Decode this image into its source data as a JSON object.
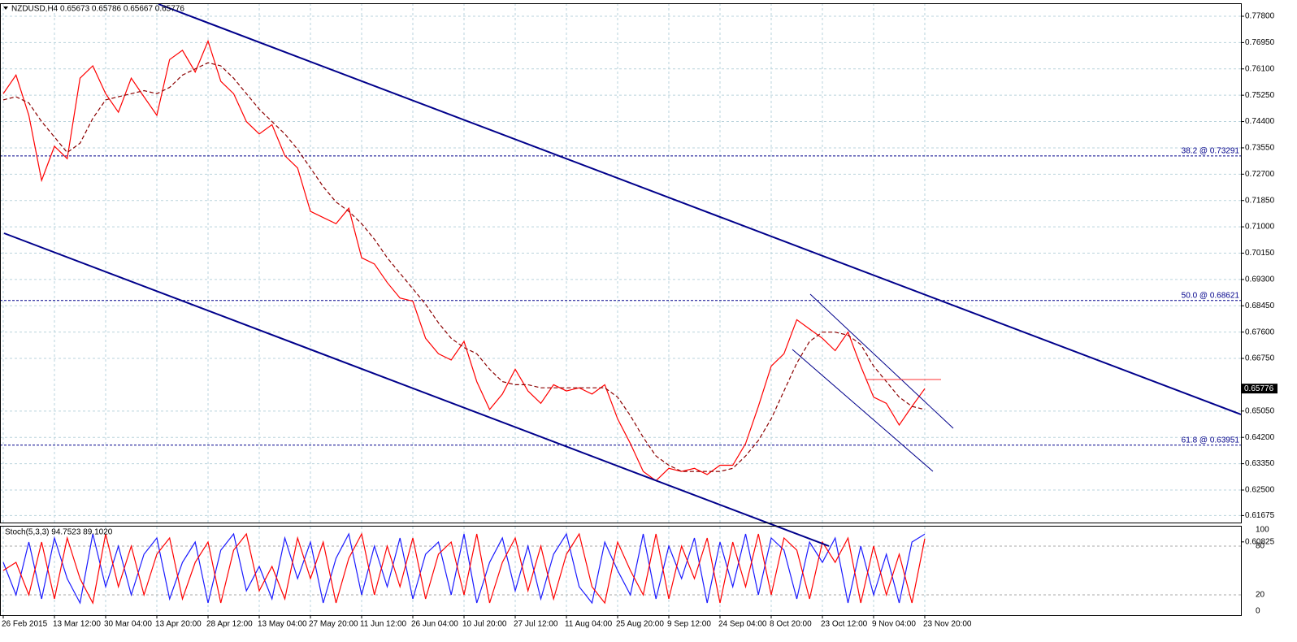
{
  "chart_data": {
    "type": "line",
    "title": "NZDUSD,H4 0.65673 0.65786 0.65667 0.65776",
    "subtitle": "Stoch(5,3,3) 94.7523 89.1020",
    "grid": true,
    "x": [
      0,
      1,
      2,
      3,
      4,
      5,
      6,
      7,
      8,
      9,
      10,
      11,
      12,
      13,
      14,
      15,
      16,
      17,
      18,
      19,
      20,
      21,
      22,
      23,
      24,
      25,
      26,
      27,
      28,
      29,
      30,
      31,
      32,
      33,
      34,
      35,
      36,
      37,
      38,
      39,
      40,
      41,
      42,
      43,
      44,
      45,
      46,
      47,
      48,
      49,
      50,
      51,
      52,
      53,
      54,
      55,
      56,
      57,
      58,
      59,
      60,
      61,
      62,
      63,
      64,
      65,
      66,
      67,
      68,
      69,
      70,
      71,
      72
    ],
    "xlim": [
      0,
      96.7
    ],
    "xticks": [
      {
        "value": 0,
        "label": "26 Feb 2015"
      },
      {
        "value": 4,
        "label": "13 Mar 12:00"
      },
      {
        "value": 8,
        "label": "30 Mar 04:00"
      },
      {
        "value": 12,
        "label": "13 Apr 20:00"
      },
      {
        "value": 16,
        "label": "28 Apr 12:00"
      },
      {
        "value": 20,
        "label": "13 May 04:00"
      },
      {
        "value": 24,
        "label": "27 May 20:00"
      },
      {
        "value": 28,
        "label": "11 Jun 12:00"
      },
      {
        "value": 32,
        "label": "26 Jun 04:00"
      },
      {
        "value": 36,
        "label": "10 Jul 20:00"
      },
      {
        "value": 40,
        "label": "27 Jul 12:00"
      },
      {
        "value": 44,
        "label": "11 Aug 04:00"
      },
      {
        "value": 48,
        "label": "25 Aug 20:00"
      },
      {
        "value": 52,
        "label": "9 Sep 12:00"
      },
      {
        "value": 56,
        "label": "24 Sep 04:00"
      },
      {
        "value": 60,
        "label": "8 Oct 20:00"
      },
      {
        "value": 64,
        "label": "23 Oct 12:00"
      },
      {
        "value": 68,
        "label": "9 Nov 04:00"
      },
      {
        "value": 72,
        "label": "23 Nov 20:00"
      }
    ],
    "ylim": [
      0.6145,
      0.7822
    ],
    "yticks": [
      {
        "value": 0.778,
        "label": "0.77800"
      },
      {
        "value": 0.7695,
        "label": "0.76950"
      },
      {
        "value": 0.761,
        "label": "0.76100"
      },
      {
        "value": 0.7525,
        "label": "0.75250"
      },
      {
        "value": 0.744,
        "label": "0.74400"
      },
      {
        "value": 0.7355,
        "label": "0.73550"
      },
      {
        "value": 0.727,
        "label": "0.72700"
      },
      {
        "value": 0.7185,
        "label": "0.71850"
      },
      {
        "value": 0.71,
        "label": "0.71000"
      },
      {
        "value": 0.7015,
        "label": "0.70150"
      },
      {
        "value": 0.693,
        "label": "0.69300"
      },
      {
        "value": 0.6845,
        "label": "0.68450"
      },
      {
        "value": 0.676,
        "label": "0.67600"
      },
      {
        "value": 0.6675,
        "label": "0.66750"
      },
      {
        "value": 0.6505,
        "label": "0.65050"
      },
      {
        "value": 0.642,
        "label": "0.64200"
      },
      {
        "value": 0.6335,
        "label": "0.63350"
      },
      {
        "value": 0.625,
        "label": "0.62500"
      },
      {
        "value": 0.61675,
        "label": "0.61675"
      },
      {
        "value": 0.60825,
        "label": "0.60825"
      }
    ],
    "y2lim": [
      0,
      100
    ],
    "y2ticks": [
      0,
      20,
      80,
      100
    ],
    "last_price": {
      "value": 0.65776,
      "label": "0.65776"
    },
    "levels": [
      {
        "value": 0.73291,
        "label": "38.2 @ 0.73291"
      },
      {
        "value": 0.68621,
        "label": "50.0 @ 0.68621"
      },
      {
        "value": 0.63951,
        "label": "61.8 @ 0.63951"
      }
    ],
    "series": [
      {
        "name": "NZDUSD",
        "color": "#ff0000",
        "values": [
          0.753,
          0.759,
          0.746,
          0.725,
          0.736,
          0.732,
          0.758,
          0.762,
          0.753,
          0.747,
          0.758,
          0.752,
          0.746,
          0.764,
          0.767,
          0.76,
          0.77,
          0.757,
          0.753,
          0.744,
          0.74,
          0.743,
          0.733,
          0.729,
          0.715,
          0.713,
          0.711,
          0.716,
          0.7,
          0.698,
          0.692,
          0.687,
          0.686,
          0.674,
          0.669,
          0.667,
          0.673,
          0.66,
          0.651,
          0.656,
          0.664,
          0.657,
          0.653,
          0.659,
          0.657,
          0.658,
          0.656,
          0.659,
          0.648,
          0.64,
          0.631,
          0.628,
          0.632,
          0.631,
          0.632,
          0.63,
          0.633,
          0.633,
          0.64,
          0.652,
          0.665,
          0.669,
          0.68,
          0.677,
          0.674,
          0.67,
          0.676,
          0.665,
          0.655,
          0.653,
          0.646,
          0.652,
          0.65776
        ]
      },
      {
        "name": "MA",
        "color": "#8b0000",
        "dashed": true,
        "values": [
          0.751,
          0.752,
          0.75,
          0.744,
          0.739,
          0.734,
          0.737,
          0.745,
          0.751,
          0.752,
          0.753,
          0.754,
          0.753,
          0.755,
          0.759,
          0.761,
          0.763,
          0.762,
          0.758,
          0.753,
          0.748,
          0.744,
          0.74,
          0.735,
          0.729,
          0.723,
          0.718,
          0.715,
          0.711,
          0.706,
          0.7,
          0.695,
          0.69,
          0.685,
          0.679,
          0.674,
          0.671,
          0.669,
          0.664,
          0.66,
          0.659,
          0.659,
          0.658,
          0.658,
          0.658,
          0.658,
          0.658,
          0.658,
          0.655,
          0.649,
          0.642,
          0.636,
          0.633,
          0.631,
          0.631,
          0.631,
          0.631,
          0.632,
          0.636,
          0.641,
          0.648,
          0.657,
          0.666,
          0.673,
          0.676,
          0.676,
          0.675,
          0.672,
          0.665,
          0.66,
          0.655,
          0.652,
          0.651
        ]
      },
      {
        "name": "Stoch main",
        "color": "#1a1aff",
        "axis": "y2",
        "values": [
          60,
          20,
          85,
          15,
          90,
          40,
          10,
          95,
          30,
          80,
          20,
          70,
          90,
          15,
          60,
          85,
          10,
          75,
          95,
          25,
          55,
          15,
          90,
          40,
          85,
          10,
          65,
          95,
          20,
          80,
          30,
          90,
          15,
          70,
          85,
          20,
          95,
          10,
          60,
          90,
          25,
          80,
          15,
          70,
          95,
          30,
          10,
          85,
          50,
          20,
          95,
          15,
          80,
          40,
          90,
          10,
          85,
          30,
          95,
          20,
          90,
          75,
          15,
          85,
          60,
          90,
          10,
          80,
          20,
          70,
          10,
          85,
          94.7523
        ]
      },
      {
        "name": "Stoch signal",
        "color": "#ff0000",
        "axis": "y2",
        "dashed": false,
        "values": [
          50,
          60,
          20,
          85,
          15,
          90,
          40,
          10,
          95,
          30,
          80,
          20,
          70,
          90,
          15,
          60,
          85,
          10,
          75,
          95,
          25,
          55,
          15,
          90,
          40,
          85,
          10,
          65,
          95,
          20,
          80,
          30,
          90,
          15,
          70,
          85,
          20,
          95,
          10,
          60,
          90,
          25,
          80,
          15,
          70,
          95,
          30,
          10,
          85,
          50,
          20,
          95,
          15,
          80,
          40,
          90,
          10,
          85,
          30,
          95,
          20,
          90,
          75,
          15,
          85,
          60,
          90,
          10,
          80,
          20,
          70,
          10,
          89.102
        ]
      }
    ]
  }
}
